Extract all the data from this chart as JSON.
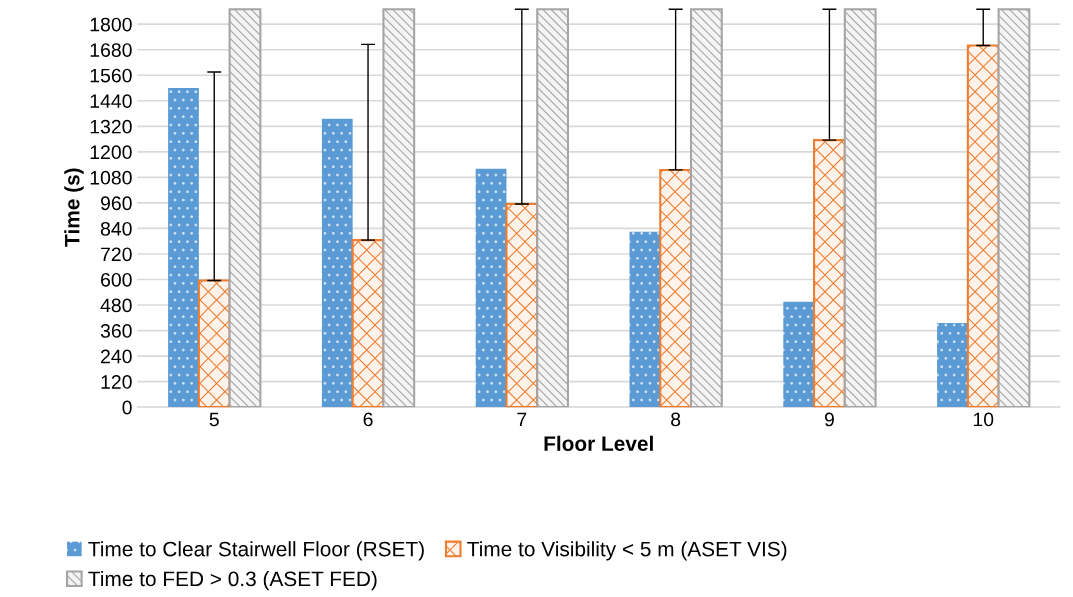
{
  "chart_data": {
    "type": "bar",
    "xlabel": "Floor Level",
    "ylabel": "Time (s)",
    "categories": [
      "5",
      "6",
      "7",
      "8",
      "9",
      "10"
    ],
    "series": [
      {
        "name": "Time to Clear Stairwell Floor (RSET)",
        "color": "#5b9bd5",
        "values": [
          1500,
          1355,
          1120,
          825,
          495,
          395
        ]
      },
      {
        "name": "Time to Visibility < 5 m (ASET VIS)",
        "color": "#ed7d31",
        "values": [
          595,
          785,
          955,
          1115,
          1255,
          1700
        ],
        "errors": [
          [
            595,
            1575
          ],
          [
            785,
            1705
          ],
          [
            955,
            1870
          ],
          [
            1115,
            1870
          ],
          [
            1255,
            1870
          ],
          [
            1700,
            1870
          ]
        ]
      },
      {
        "name": "Time to FED > 0.3 (ASET FED)",
        "color": "#a5a5a5",
        "values": [
          1870,
          1870,
          1870,
          1870,
          1870,
          1870
        ]
      }
    ],
    "ylim": [
      0,
      1880
    ],
    "yticks": [
      0,
      120,
      240,
      360,
      480,
      600,
      720,
      840,
      960,
      1080,
      1200,
      1320,
      1440,
      1560,
      1680,
      1800
    ],
    "grid": "y",
    "legend": "bottom"
  }
}
